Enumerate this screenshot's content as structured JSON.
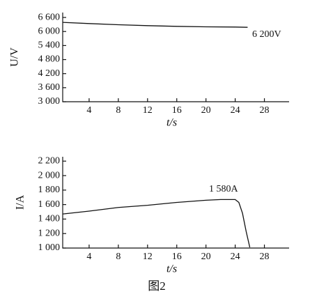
{
  "chart_data": [
    {
      "type": "line",
      "ylabel": "U/V",
      "xlabel": "t/s",
      "annotation": "6 200V",
      "color": "#111",
      "x": [
        0.4,
        4,
        8,
        12,
        16,
        20,
        24,
        25.7
      ],
      "values": [
        6390,
        6340,
        6290,
        6250,
        6220,
        6200,
        6190,
        6180
      ],
      "xlim": [
        0,
        31
      ],
      "xticks": [
        4,
        8,
        12,
        16,
        20,
        24,
        28
      ],
      "ylim": [
        3000,
        6810
      ],
      "yticks": [
        {
          "value": 3000,
          "label": "3 000"
        },
        {
          "value": 3600,
          "label": "3 600"
        },
        {
          "value": 4200,
          "label": "4 200"
        },
        {
          "value": 4800,
          "label": "4 800"
        },
        {
          "value": 5400,
          "label": "5 400"
        },
        {
          "value": 6000,
          "label": "6 000"
        },
        {
          "value": 6600,
          "label": "6 600"
        }
      ]
    },
    {
      "type": "line",
      "ylabel": "I/A",
      "xlabel": "t/s",
      "annotation": "1 580A",
      "color": "#111",
      "x": [
        0.4,
        4,
        8,
        12,
        16,
        20,
        22,
        24,
        24.5,
        25,
        25.5,
        26
      ],
      "values": [
        1470,
        1510,
        1560,
        1590,
        1630,
        1660,
        1670,
        1670,
        1630,
        1480,
        1230,
        1010
      ],
      "xlim": [
        0,
        31
      ],
      "xticks": [
        4,
        8,
        12,
        16,
        20,
        24,
        28
      ],
      "ylim": [
        1000,
        2260
      ],
      "yticks": [
        {
          "value": 1000,
          "label": "1 000"
        },
        {
          "value": 1200,
          "label": "1 200"
        },
        {
          "value": 1400,
          "label": "1 400"
        },
        {
          "value": 1600,
          "label": "1 600"
        },
        {
          "value": 1800,
          "label": "1 800"
        },
        {
          "value": 2000,
          "label": "2 000"
        },
        {
          "value": 2200,
          "label": "2 200"
        }
      ]
    }
  ],
  "caption": "图2"
}
